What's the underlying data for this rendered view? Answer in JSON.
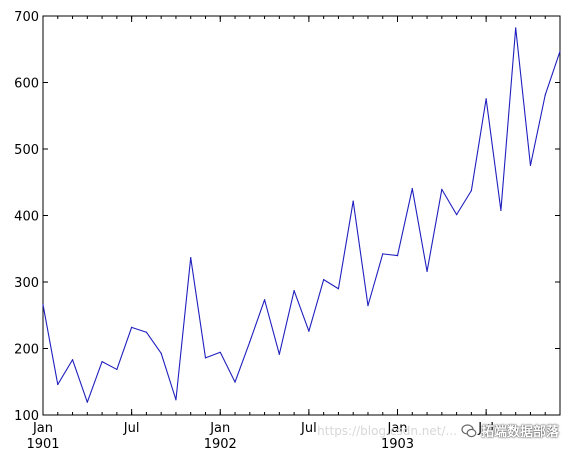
{
  "chart_data": {
    "type": "line",
    "x": [
      "1901-01",
      "1901-02",
      "1901-03",
      "1901-04",
      "1901-05",
      "1901-06",
      "1901-07",
      "1901-08",
      "1901-09",
      "1901-10",
      "1901-11",
      "1901-12",
      "1902-01",
      "1902-02",
      "1902-03",
      "1902-04",
      "1902-05",
      "1902-06",
      "1902-07",
      "1902-08",
      "1902-09",
      "1902-10",
      "1902-11",
      "1902-12",
      "1903-01",
      "1903-02",
      "1903-03",
      "1903-04",
      "1903-05",
      "1903-06",
      "1903-07",
      "1903-08",
      "1903-09",
      "1903-10",
      "1903-11",
      "1903-12"
    ],
    "series": [
      {
        "values": [
          266.0,
          145.9,
          183.1,
          119.3,
          180.3,
          168.5,
          231.8,
          224.5,
          192.8,
          122.9,
          336.5,
          185.9,
          194.3,
          149.5,
          210.1,
          273.3,
          191.4,
          287.0,
          226.0,
          303.6,
          289.9,
          421.6,
          264.5,
          342.3,
          339.7,
          440.4,
          315.9,
          439.3,
          401.3,
          437.4,
          575.5,
          407.6,
          682.0,
          475.3,
          581.3,
          646.9
        ],
        "color": "#1f1fbf"
      }
    ],
    "ylim": [
      100,
      700
    ],
    "yticks": [
      "100",
      "200",
      "300",
      "400",
      "500",
      "600",
      "700"
    ],
    "xtick_labels": [
      {
        "month": "Jan",
        "year": "1901",
        "index": 0
      },
      {
        "month": "Jul",
        "year": "",
        "index": 6
      },
      {
        "month": "Jan",
        "year": "1902",
        "index": 12
      },
      {
        "month": "Jul",
        "year": "",
        "index": 18
      },
      {
        "month": "Jan",
        "year": "1903",
        "index": 24
      },
      {
        "month": "Jul",
        "year": "",
        "index": 30
      }
    ],
    "title": "",
    "xlabel": "",
    "ylabel": "",
    "grid": false
  },
  "watermark": {
    "url_text": "https://blog.csdn.net/...",
    "name_text": "拓端数据部落",
    "icon": "wechat-icon"
  }
}
